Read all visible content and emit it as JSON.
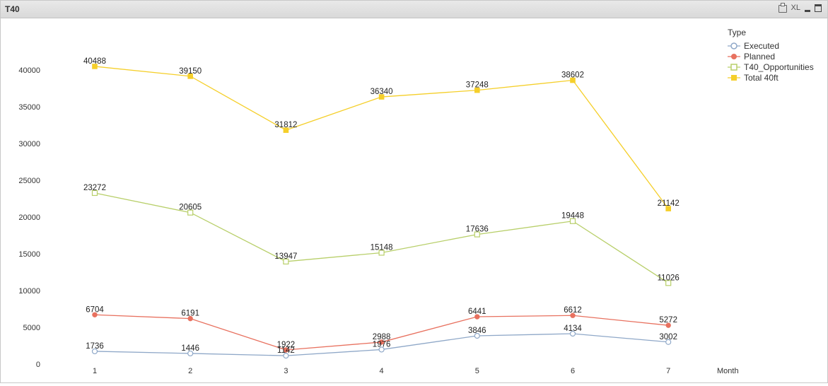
{
  "window": {
    "title": "T40",
    "controls": {
      "xl_label": "XL"
    }
  },
  "chart_data": {
    "type": "line",
    "title": "",
    "xlabel": "Month",
    "ylabel": "",
    "categories": [
      "1",
      "2",
      "3",
      "4",
      "5",
      "6",
      "7"
    ],
    "ylim": [
      0,
      45000
    ],
    "yticks": [
      0,
      5000,
      10000,
      15000,
      20000,
      25000,
      30000,
      35000,
      40000
    ],
    "grid": false,
    "legend_title": "Type",
    "legend_position": "top-right",
    "series": [
      {
        "name": "Executed",
        "color": "#8fa8c8",
        "marker": "circle-open",
        "values": [
          1736,
          1446,
          1142,
          1976,
          3846,
          4134,
          3002
        ]
      },
      {
        "name": "Planned",
        "color": "#e8715f",
        "marker": "circle-filled",
        "values": [
          6704,
          6191,
          1922,
          2988,
          6441,
          6612,
          5272
        ]
      },
      {
        "name": "T40_Opportunities",
        "color": "#b8cf6a",
        "marker": "square-open",
        "values": [
          23272,
          20605,
          13947,
          15148,
          17636,
          19448,
          11026
        ]
      },
      {
        "name": "Total 40ft",
        "color": "#f5cf2a",
        "marker": "square-filled",
        "values": [
          40488,
          39150,
          31812,
          36340,
          37248,
          38602,
          21142
        ]
      }
    ]
  }
}
